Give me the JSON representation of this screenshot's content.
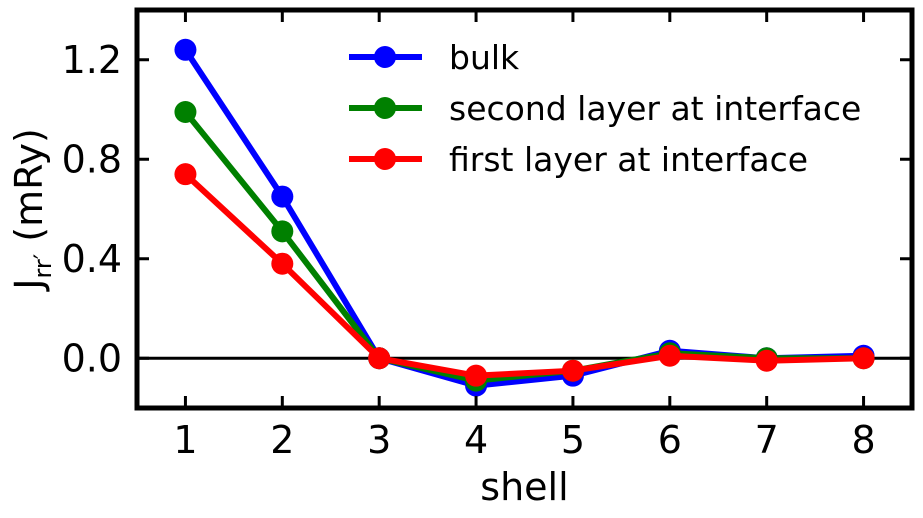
{
  "chart_data": {
    "type": "line",
    "title": "",
    "xlabel": "shell",
    "ylabel": {
      "main": "J",
      "subscript": "rr′",
      "unit": " (mRy)"
    },
    "x": [
      1,
      2,
      3,
      4,
      5,
      6,
      7,
      8
    ],
    "xlim": [
      0.5,
      8.5
    ],
    "ylim": [
      -0.2,
      1.4
    ],
    "xticks": [
      "1",
      "2",
      "3",
      "4",
      "5",
      "6",
      "7",
      "8"
    ],
    "yticks": [
      "0.0",
      "0.4",
      "0.8",
      "1.2"
    ],
    "ytick_values": [
      0.0,
      0.4,
      0.8,
      1.2
    ],
    "zero_line": true,
    "grid": false,
    "legend_position": "top-right",
    "series": [
      {
        "name": "bulk",
        "color": "#0000ff",
        "values": [
          1.24,
          0.65,
          0.0,
          -0.11,
          -0.07,
          0.03,
          0.0,
          0.01
        ]
      },
      {
        "name": "second layer at interface",
        "color": "#008000",
        "values": [
          0.99,
          0.51,
          0.0,
          -0.09,
          -0.05,
          0.02,
          0.0,
          0.0
        ]
      },
      {
        "name": "first layer at interface",
        "color": "#ff0000",
        "values": [
          0.74,
          0.38,
          0.0,
          -0.07,
          -0.05,
          0.01,
          -0.01,
          0.0
        ]
      }
    ]
  }
}
